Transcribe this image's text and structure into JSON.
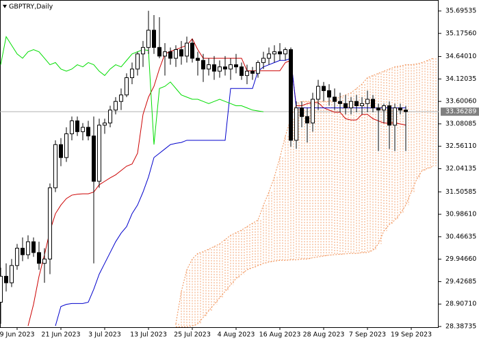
{
  "chart_data": {
    "type": "candlestick",
    "title": "GBPTRY,Daily",
    "current_price": 33.36289,
    "ylim": [
      28.371,
      35.949
    ],
    "yticks": [
      35.69535,
      {
        "value": 35.1756,
        "label": "35.17560"
      },
      {
        "value": 34.6401,
        "label": "34.64010"
      },
      34.12035,
      {
        "value": 33.6006,
        "label": "33.60060"
      },
      33.08085,
      {
        "value": 32.5611,
        "label": "32.56110"
      },
      32.04135,
      31.50585,
      {
        "value": 30.9861,
        "label": "30.98610"
      },
      30.46635,
      {
        "value": 29.9466,
        "label": "29.94660"
      },
      29.42685,
      {
        "value": 28.9071,
        "label": "28.90710"
      },
      28.38735
    ],
    "categories": [
      null,
      null,
      null,
      "9 Jun 2023",
      null,
      null,
      null,
      null,
      null,
      null,
      null,
      "21 Jun 2023",
      null,
      null,
      null,
      null,
      null,
      null,
      null,
      "3 Jul 2023",
      null,
      null,
      null,
      null,
      null,
      null,
      null,
      "13 Jul 2023",
      null,
      null,
      null,
      null,
      null,
      null,
      null,
      "25 Jul 2023",
      null,
      null,
      null,
      null,
      null,
      null,
      null,
      "4 Aug 2023",
      null,
      null,
      null,
      null,
      null,
      null,
      null,
      "16 Aug 2023",
      null,
      null,
      null,
      null,
      null,
      null,
      null,
      "28 Aug 2023",
      null,
      null,
      null,
      null,
      null,
      null,
      null,
      "7 Sep 2023",
      null,
      null,
      null,
      null,
      null,
      null,
      null,
      "19 Sep 2023",
      null,
      null,
      null,
      null
    ],
    "candles": {
      "up_color": "#ffffff",
      "down_color": "#000000",
      "open": [
        28.95,
        29.55,
        29.4,
        29.8,
        30.2,
        30.05,
        30.35,
        30.1,
        29.85,
        29.95,
        31.6,
        32.6,
        32.3,
        32.85,
        33.15,
        32.9,
        33.0,
        32.8,
        31.75,
        33.05,
        33.1,
        33.4,
        33.6,
        33.75,
        34.15,
        34.35,
        34.7,
        34.85,
        35.25,
        34.85,
        34.65,
        34.75,
        34.6,
        34.8,
        34.65,
        34.95,
        34.6,
        34.55,
        34.35,
        34.45,
        34.3,
        34.4,
        34.35,
        34.45,
        34.4,
        34.2,
        34.3,
        34.25,
        34.5,
        34.6,
        34.7,
        34.75,
        34.7,
        34.8,
        32.7,
        33.45,
        33.25,
        33.1,
        33.65,
        33.95,
        33.85,
        33.7,
        33.6,
        33.55,
        33.45,
        33.6,
        33.5,
        33.55,
        33.65,
        33.45,
        33.4,
        33.5,
        33.05,
        33.45,
        33.4,
        null,
        null,
        null,
        null,
        null
      ],
      "high": [
        29.75,
        29.85,
        29.95,
        30.3,
        30.45,
        30.5,
        30.45,
        30.35,
        30.2,
        31.7,
        32.7,
        32.75,
        33.0,
        33.25,
        33.25,
        33.1,
        33.15,
        33.25,
        33.2,
        33.2,
        33.5,
        33.7,
        33.9,
        34.25,
        34.5,
        34.75,
        35.0,
        35.7,
        35.6,
        35.55,
        34.95,
        34.85,
        34.9,
        35.0,
        35.1,
        35.05,
        34.75,
        34.7,
        34.6,
        34.65,
        34.55,
        34.65,
        34.6,
        34.7,
        34.5,
        34.45,
        34.4,
        34.55,
        34.75,
        34.85,
        34.9,
        34.95,
        34.85,
        34.85,
        33.6,
        33.6,
        33.45,
        33.8,
        34.1,
        34.05,
        34.0,
        33.9,
        33.8,
        33.75,
        33.7,
        33.75,
        33.7,
        33.85,
        33.75,
        33.55,
        33.55,
        33.6,
        33.55,
        33.55,
        33.5,
        null,
        null,
        null,
        null,
        null
      ],
      "low": [
        28.45,
        29.2,
        29.3,
        29.7,
        29.9,
        29.95,
        30.0,
        29.7,
        29.4,
        29.6,
        31.5,
        32.1,
        32.2,
        32.7,
        32.8,
        32.7,
        32.7,
        29.85,
        31.6,
        32.85,
        33.0,
        33.3,
        33.4,
        33.7,
        34.0,
        34.2,
        34.4,
        34.7,
        34.7,
        34.6,
        34.2,
        34.45,
        34.4,
        34.45,
        34.5,
        34.5,
        34.2,
        34.05,
        34.2,
        34.1,
        34.15,
        34.2,
        34.1,
        34.25,
        34.1,
        34.0,
        34.1,
        34.15,
        34.35,
        34.45,
        34.5,
        34.55,
        34.55,
        32.55,
        32.5,
        33.0,
        32.65,
        32.9,
        33.4,
        33.6,
        33.5,
        33.4,
        33.35,
        33.3,
        33.3,
        33.35,
        33.3,
        33.35,
        33.35,
        32.45,
        33.1,
        32.5,
        32.45,
        33.3,
        32.45,
        null,
        null,
        null,
        null,
        null
      ],
      "close": [
        29.55,
        29.4,
        29.8,
        30.2,
        30.05,
        30.35,
        30.1,
        29.85,
        29.95,
        31.6,
        32.6,
        32.3,
        32.85,
        33.15,
        32.9,
        33.0,
        32.8,
        31.75,
        33.05,
        33.1,
        33.4,
        33.6,
        33.75,
        34.15,
        34.35,
        34.7,
        34.85,
        35.25,
        34.85,
        34.65,
        34.75,
        34.6,
        34.8,
        34.65,
        34.95,
        34.6,
        34.55,
        34.35,
        34.45,
        34.3,
        34.4,
        34.35,
        34.45,
        34.4,
        34.2,
        34.3,
        34.25,
        34.5,
        34.6,
        34.7,
        34.75,
        34.7,
        34.8,
        32.7,
        33.45,
        33.25,
        33.1,
        33.65,
        33.95,
        33.85,
        33.7,
        33.6,
        33.55,
        33.45,
        33.6,
        33.5,
        33.55,
        33.65,
        33.45,
        33.4,
        33.5,
        33.05,
        33.45,
        33.4,
        33.36289,
        null,
        null,
        null,
        null,
        null
      ]
    },
    "lines": [
      {
        "color": "#cc0000",
        "values": [
          null,
          null,
          null,
          null,
          null,
          28.4,
          28.9,
          29.55,
          30.05,
          30.6,
          31.0,
          31.2,
          31.35,
          31.43,
          31.45,
          31.46,
          31.46,
          31.5,
          31.67,
          31.75,
          31.83,
          31.9,
          32.0,
          32.1,
          32.15,
          32.4,
          33.3,
          33.7,
          33.95,
          34.36,
          34.7,
          34.76,
          34.8,
          34.85,
          34.9,
          35.05,
          34.8,
          34.6,
          34.6,
          34.6,
          34.6,
          34.6,
          34.6,
          34.6,
          34.6,
          34.31,
          34.31,
          34.31,
          34.31,
          34.31,
          34.31,
          34.31,
          34.5,
          34.55,
          33.5,
          33.5,
          33.55,
          33.57,
          33.57,
          33.45,
          33.4,
          33.35,
          33.35,
          33.2,
          33.17,
          33.17,
          33.3,
          33.3,
          33.2,
          33.15,
          33.1,
          33.1,
          33.1,
          33.08,
          33.05,
          null,
          null,
          null,
          null,
          null
        ]
      },
      {
        "color": "#0000cc",
        "values": [
          null,
          null,
          null,
          null,
          null,
          null,
          null,
          null,
          null,
          null,
          28.4,
          28.85,
          28.9,
          28.92,
          28.92,
          28.92,
          28.95,
          29.25,
          29.6,
          29.85,
          30.1,
          30.35,
          30.55,
          30.7,
          31.0,
          31.2,
          31.5,
          31.85,
          32.3,
          32.4,
          32.5,
          32.6,
          32.63,
          32.65,
          32.7,
          32.7,
          32.7,
          32.7,
          32.7,
          32.7,
          32.7,
          32.7,
          33.9,
          33.9,
          33.9,
          33.9,
          33.9,
          34.3,
          34.4,
          34.45,
          34.5,
          34.55,
          34.55,
          34.6,
          33.45,
          33.45,
          33.45,
          33.45,
          33.45,
          33.45,
          33.45,
          33.45,
          33.45,
          33.45,
          33.45,
          33.45,
          33.45,
          33.45,
          33.45,
          33.45,
          33.45,
          33.45,
          33.45,
          33.45,
          33.45,
          null,
          null,
          null,
          null,
          null
        ]
      },
      {
        "color": "#00dd00",
        "values": [
          34.45,
          35.1,
          34.9,
          34.7,
          34.6,
          34.75,
          34.8,
          34.75,
          34.6,
          34.45,
          34.5,
          34.35,
          34.3,
          34.35,
          34.45,
          34.4,
          34.5,
          34.45,
          34.3,
          34.2,
          34.35,
          34.45,
          34.4,
          34.55,
          34.7,
          34.75,
          34.8,
          34.78,
          32.6,
          33.9,
          33.95,
          34.05,
          33.9,
          33.75,
          33.7,
          33.65,
          33.65,
          33.6,
          33.55,
          33.6,
          33.65,
          33.6,
          33.55,
          33.5,
          33.5,
          33.45,
          33.4,
          33.38,
          33.36,
          null,
          null,
          null,
          null,
          null,
          null,
          null,
          null,
          null,
          null,
          null,
          null,
          null,
          null,
          null,
          null,
          null,
          null,
          null,
          null,
          null,
          null,
          null,
          null,
          null,
          null,
          null,
          null,
          null,
          null,
          null
        ]
      }
    ],
    "cloud": {
      "color": "#f08a4b",
      "upper": [
        null,
        null,
        null,
        null,
        null,
        null,
        null,
        null,
        null,
        null,
        null,
        null,
        null,
        null,
        null,
        null,
        null,
        null,
        null,
        null,
        null,
        null,
        null,
        null,
        null,
        null,
        null,
        null,
        null,
        null,
        null,
        null,
        28.45,
        29.2,
        29.7,
        29.95,
        30.08,
        30.12,
        30.18,
        30.24,
        30.3,
        30.4,
        30.5,
        30.56,
        30.62,
        30.7,
        30.78,
        30.85,
        31.2,
        31.5,
        31.85,
        32.3,
        32.8,
        33.2,
        33.55,
        33.6,
        33.6,
        33.6,
        33.6,
        33.6,
        33.6,
        33.65,
        33.7,
        33.75,
        33.8,
        33.9,
        34.0,
        34.15,
        34.2,
        34.25,
        34.3,
        34.35,
        34.4,
        34.42,
        34.45,
        34.45,
        34.47,
        34.5,
        34.55,
        34.6
      ],
      "lower": [
        null,
        null,
        null,
        null,
        null,
        null,
        null,
        null,
        null,
        null,
        null,
        null,
        null,
        null,
        null,
        null,
        null,
        null,
        null,
        null,
        null,
        null,
        null,
        null,
        null,
        null,
        null,
        null,
        null,
        null,
        null,
        null,
        28.38,
        28.38,
        28.38,
        28.4,
        28.45,
        28.6,
        28.75,
        28.9,
        29.05,
        29.2,
        29.35,
        29.5,
        29.6,
        29.7,
        29.75,
        29.8,
        29.85,
        29.88,
        29.9,
        29.92,
        29.92,
        29.93,
        29.93,
        29.95,
        29.95,
        29.98,
        30.0,
        30.02,
        30.04,
        30.05,
        30.06,
        30.07,
        30.08,
        30.08,
        30.1,
        30.1,
        30.15,
        30.3,
        30.6,
        30.75,
        30.85,
        31.0,
        31.2,
        31.5,
        31.8,
        32.0,
        32.05,
        32.1
      ]
    }
  }
}
